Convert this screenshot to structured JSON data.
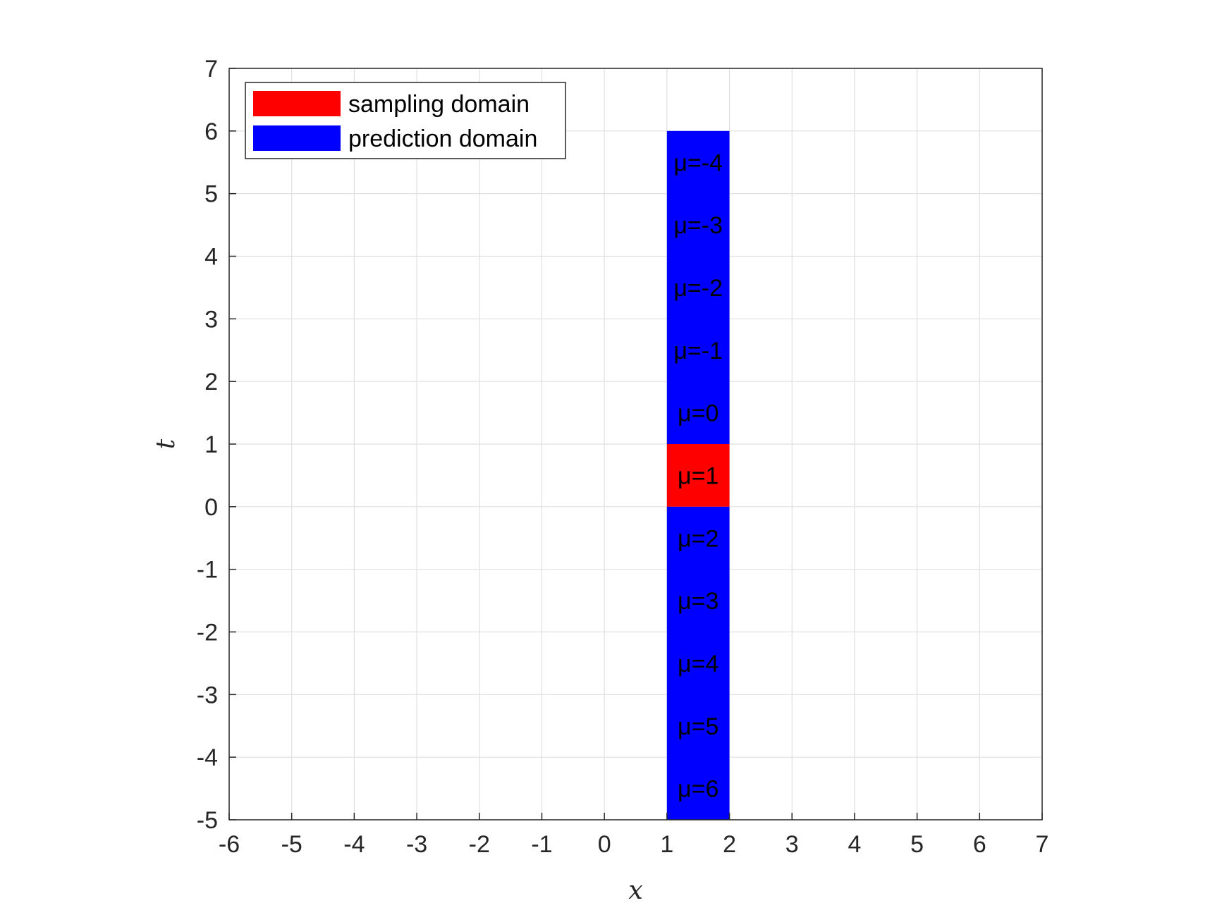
{
  "chart_data": {
    "type": "heatmap",
    "title": "",
    "xlabel": "x",
    "ylabel": "t",
    "xlim": [
      -6,
      7
    ],
    "ylim": [
      -5,
      7
    ],
    "xticks": [
      "-6",
      "-5",
      "-4",
      "-3",
      "-2",
      "-1",
      "0",
      "1",
      "2",
      "3",
      "4",
      "5",
      "6",
      "7"
    ],
    "yticks": [
      "-5",
      "-4",
      "-3",
      "-2",
      "-1",
      "0",
      "1",
      "2",
      "3",
      "4",
      "5",
      "6",
      "7"
    ],
    "grid": true,
    "legend_position": "top-left",
    "legend": [
      {
        "label": "sampling domain",
        "color": "#ff0000"
      },
      {
        "label": "prediction domain",
        "color": "#0000ff"
      }
    ],
    "regions": [
      {
        "name": "prediction domain",
        "color": "#0000ff",
        "x": [
          1,
          2
        ],
        "t": [
          1,
          6
        ]
      },
      {
        "name": "sampling domain",
        "color": "#ff0000",
        "x": [
          1,
          2
        ],
        "t": [
          0,
          1
        ]
      },
      {
        "name": "prediction domain",
        "color": "#0000ff",
        "x": [
          1,
          2
        ],
        "t": [
          -5,
          0
        ]
      }
    ],
    "cell_labels": [
      {
        "text": "μ=-4",
        "x": 1.5,
        "t": 5.5
      },
      {
        "text": "μ=-3",
        "x": 1.5,
        "t": 4.5
      },
      {
        "text": "μ=-2",
        "x": 1.5,
        "t": 3.5
      },
      {
        "text": "μ=-1",
        "x": 1.5,
        "t": 2.5
      },
      {
        "text": "μ=0",
        "x": 1.5,
        "t": 1.5
      },
      {
        "text": "μ=1",
        "x": 1.5,
        "t": 0.5
      },
      {
        "text": "μ=2",
        "x": 1.5,
        "t": -0.5
      },
      {
        "text": "μ=3",
        "x": 1.5,
        "t": -1.5
      },
      {
        "text": "μ=4",
        "x": 1.5,
        "t": -2.5
      },
      {
        "text": "μ=5",
        "x": 1.5,
        "t": -3.5
      },
      {
        "text": "μ=6",
        "x": 1.5,
        "t": -4.5
      }
    ]
  }
}
